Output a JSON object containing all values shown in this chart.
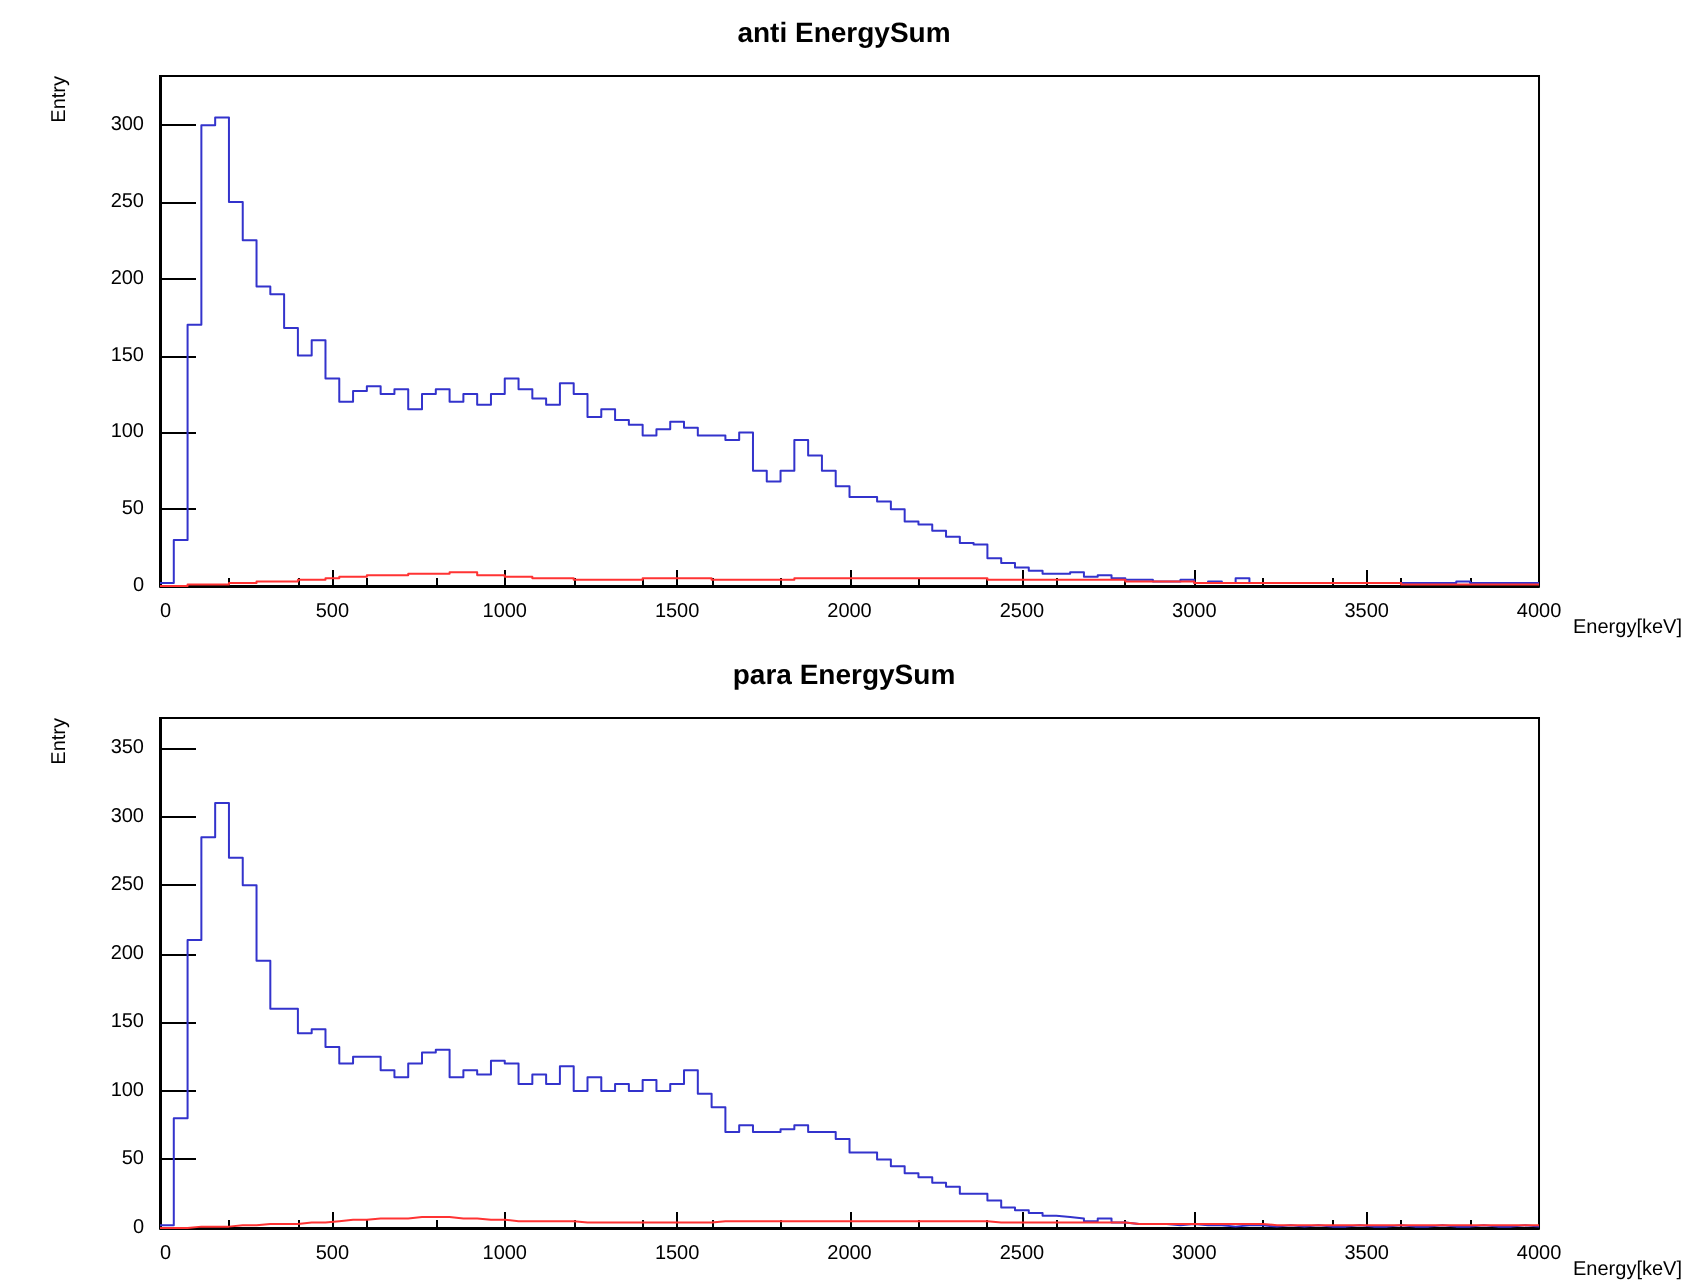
{
  "chart_data": [
    {
      "type": "histogram",
      "title": "anti EnergySum",
      "xlabel": "Energy[keV]",
      "ylabel": "Entry",
      "xlim": [
        0,
        4000
      ],
      "xticks": [
        0,
        500,
        1000,
        1500,
        2000,
        2500,
        3000,
        3500,
        4000
      ],
      "ylim": [
        0,
        332
      ],
      "yticks": [
        0,
        50,
        100,
        150,
        200,
        250,
        300
      ],
      "grid": false,
      "bins": [
        0,
        40,
        80,
        120,
        160,
        200,
        240,
        280,
        320,
        360,
        400,
        440,
        480,
        520,
        560,
        600,
        640,
        680,
        720,
        760,
        800,
        840,
        880,
        920,
        960,
        1000,
        1040,
        1080,
        1120,
        1160,
        1200,
        1240,
        1280,
        1320,
        1360,
        1400,
        1440,
        1480,
        1520,
        1560,
        1600,
        1640,
        1680,
        1720,
        1760,
        1800,
        1840,
        1880,
        1920,
        1960,
        2000,
        2040,
        2080,
        2120,
        2160,
        2200,
        2240,
        2280,
        2320,
        2360,
        2400,
        2440,
        2480,
        2520,
        2560,
        2600,
        2640,
        2680,
        2720,
        2760,
        2800,
        2840,
        2880,
        2920,
        2960,
        3000,
        3040,
        3080,
        3120,
        3160,
        3200,
        3240,
        3280,
        3320,
        3360,
        3400,
        3440,
        3480,
        3520,
        3560,
        3600,
        3640,
        3680,
        3720,
        3760,
        3800,
        3840,
        3880,
        3920,
        3960,
        4000
      ],
      "series": [
        {
          "color": "#3333cc",
          "values": [
            2,
            30,
            170,
            300,
            305,
            250,
            225,
            195,
            190,
            168,
            150,
            160,
            135,
            120,
            127,
            130,
            125,
            128,
            115,
            125,
            128,
            120,
            125,
            118,
            125,
            135,
            128,
            122,
            118,
            132,
            125,
            110,
            115,
            108,
            105,
            98,
            102,
            107,
            103,
            98,
            98,
            95,
            100,
            75,
            68,
            75,
            95,
            85,
            75,
            65,
            58,
            58,
            55,
            50,
            42,
            40,
            36,
            32,
            28,
            27,
            18,
            15,
            12,
            10,
            8,
            8,
            9,
            6,
            7,
            5,
            4,
            4,
            3,
            3,
            4,
            2,
            3,
            2,
            5,
            2,
            2,
            2,
            2,
            2,
            2,
            2,
            2,
            2,
            2,
            2,
            2,
            2,
            2,
            2,
            3,
            2,
            2,
            2,
            2,
            2
          ]
        },
        {
          "color": "#ff3333",
          "values": [
            0,
            0,
            1,
            1,
            1,
            2,
            2,
            3,
            3,
            3,
            4,
            4,
            5,
            6,
            6,
            7,
            7,
            7,
            8,
            8,
            8,
            9,
            9,
            7,
            7,
            6,
            6,
            5,
            5,
            5,
            4,
            4,
            4,
            4,
            4,
            5,
            5,
            5,
            5,
            5,
            4,
            4,
            4,
            4,
            4,
            4,
            5,
            5,
            5,
            5,
            5,
            5,
            5,
            5,
            5,
            5,
            5,
            5,
            5,
            5,
            4,
            4,
            4,
            4,
            4,
            4,
            4,
            4,
            4,
            4,
            3,
            3,
            3,
            3,
            3,
            2,
            2,
            2,
            2,
            2,
            2,
            2,
            2,
            2,
            2,
            2,
            2,
            2,
            2,
            2,
            1,
            1,
            1,
            1,
            1,
            1,
            1,
            1,
            1,
            1
          ]
        }
      ]
    },
    {
      "type": "histogram",
      "title": "para EnergySum",
      "xlabel": "Energy[keV]",
      "ylabel": "Entry",
      "xlim": [
        0,
        4000
      ],
      "xticks": [
        0,
        500,
        1000,
        1500,
        2000,
        2500,
        3000,
        3500,
        4000
      ],
      "ylim": [
        0,
        372
      ],
      "yticks": [
        0,
        50,
        100,
        150,
        200,
        250,
        300,
        350
      ],
      "grid": false,
      "bins": [
        0,
        40,
        80,
        120,
        160,
        200,
        240,
        280,
        320,
        360,
        400,
        440,
        480,
        520,
        560,
        600,
        640,
        680,
        720,
        760,
        800,
        840,
        880,
        920,
        960,
        1000,
        1040,
        1080,
        1120,
        1160,
        1200,
        1240,
        1280,
        1320,
        1360,
        1400,
        1440,
        1480,
        1520,
        1560,
        1600,
        1640,
        1680,
        1720,
        1760,
        1800,
        1840,
        1880,
        1920,
        1960,
        2000,
        2040,
        2080,
        2120,
        2160,
        2200,
        2240,
        2280,
        2320,
        2360,
        2400,
        2440,
        2480,
        2520,
        2560,
        2600,
        2640,
        2680,
        2720,
        2760,
        2800,
        2840,
        2880,
        2920,
        2960,
        3000,
        3040,
        3080,
        3120,
        3160,
        3200,
        3240,
        3280,
        3320,
        3360,
        3400,
        3440,
        3480,
        3520,
        3560,
        3600,
        3640,
        3680,
        3720,
        3760,
        3800,
        3840,
        3880,
        3920,
        3960,
        4000
      ],
      "series": [
        {
          "color": "#3333cc",
          "values": [
            2,
            80,
            210,
            285,
            310,
            270,
            250,
            195,
            160,
            160,
            142,
            145,
            132,
            120,
            125,
            125,
            115,
            110,
            120,
            128,
            130,
            110,
            115,
            112,
            122,
            120,
            105,
            112,
            105,
            118,
            100,
            110,
            100,
            105,
            100,
            108,
            100,
            105,
            115,
            98,
            88,
            70,
            75,
            70,
            70,
            72,
            75,
            70,
            70,
            65,
            55,
            55,
            50,
            45,
            40,
            37,
            33,
            30,
            25,
            25,
            20,
            15,
            13,
            11,
            9,
            8,
            7,
            5,
            7,
            4,
            3,
            3,
            3,
            2,
            3,
            2,
            2,
            1,
            2,
            2,
            1,
            2,
            1,
            2,
            1,
            1,
            2,
            1,
            1,
            2,
            1,
            1,
            2,
            1,
            1,
            2,
            1,
            1,
            2,
            1
          ]
        },
        {
          "color": "#ff3333",
          "values": [
            0,
            0,
            1,
            1,
            1,
            2,
            2,
            3,
            3,
            3,
            4,
            4,
            5,
            6,
            6,
            7,
            7,
            7,
            8,
            8,
            8,
            7,
            7,
            6,
            6,
            5,
            5,
            5,
            5,
            5,
            4,
            4,
            4,
            4,
            4,
            4,
            4,
            4,
            4,
            4,
            5,
            5,
            5,
            5,
            5,
            5,
            5,
            5,
            5,
            5,
            5,
            5,
            5,
            5,
            5,
            5,
            5,
            5,
            5,
            5,
            4,
            4,
            4,
            4,
            4,
            4,
            4,
            4,
            4,
            4,
            3,
            3,
            3,
            3,
            3,
            3,
            3,
            3,
            3,
            3,
            2,
            2,
            2,
            2,
            2,
            2,
            2,
            2,
            2,
            2,
            2,
            2,
            2,
            2,
            2,
            2,
            2,
            2,
            2,
            2
          ]
        }
      ]
    }
  ]
}
